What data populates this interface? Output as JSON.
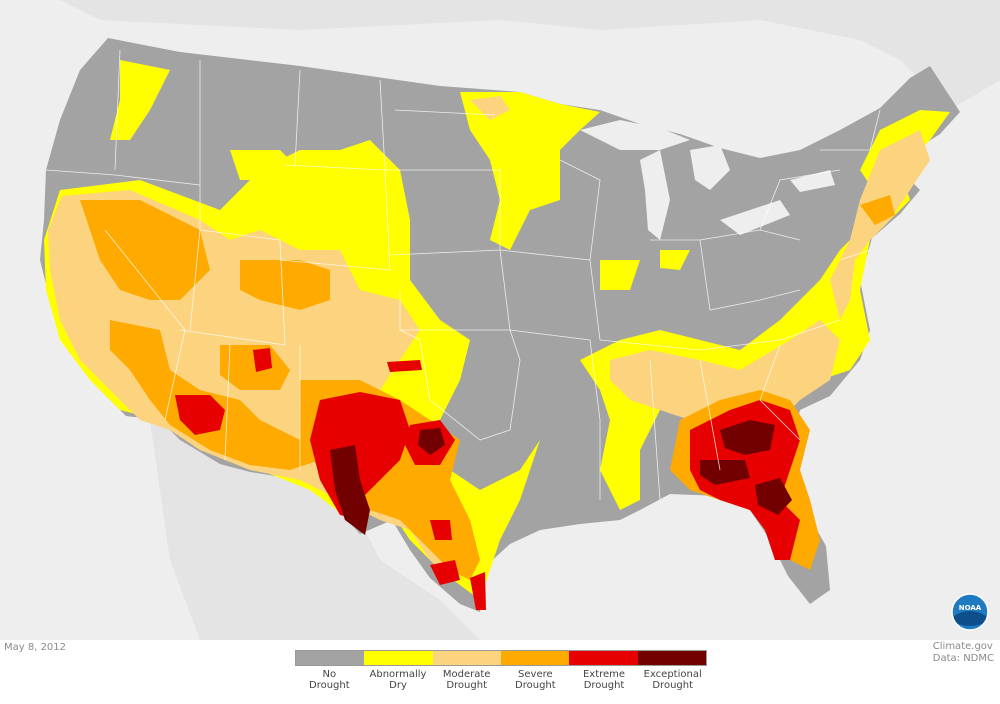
{
  "map": {
    "date": "May 8, 2012",
    "credit_line1": "Climate.gov",
    "credit_line2": "Data: NDMC",
    "logo_text": "NOAA",
    "colors": {
      "background": "#eeeeee",
      "land_outside": "#e2e2e2",
      "no_drought": "#a3a3a3",
      "abnormally_dry": "#ffff00",
      "moderate": "#fcd37f",
      "severe": "#ffaa00",
      "extreme": "#e60000",
      "exceptional": "#730000",
      "borders": "#ffffff"
    }
  },
  "legend": {
    "items": [
      {
        "line1": "No",
        "line2": "Drought",
        "color": "#a3a3a3"
      },
      {
        "line1": "Abnormally",
        "line2": "Dry",
        "color": "#ffff00"
      },
      {
        "line1": "Moderate",
        "line2": "Drought",
        "color": "#fcd37f"
      },
      {
        "line1": "Severe",
        "line2": "Drought",
        "color": "#ffaa00"
      },
      {
        "line1": "Extreme",
        "line2": "Drought",
        "color": "#e60000"
      },
      {
        "line1": "Exceptional",
        "line2": "Drought",
        "color": "#730000"
      }
    ]
  }
}
